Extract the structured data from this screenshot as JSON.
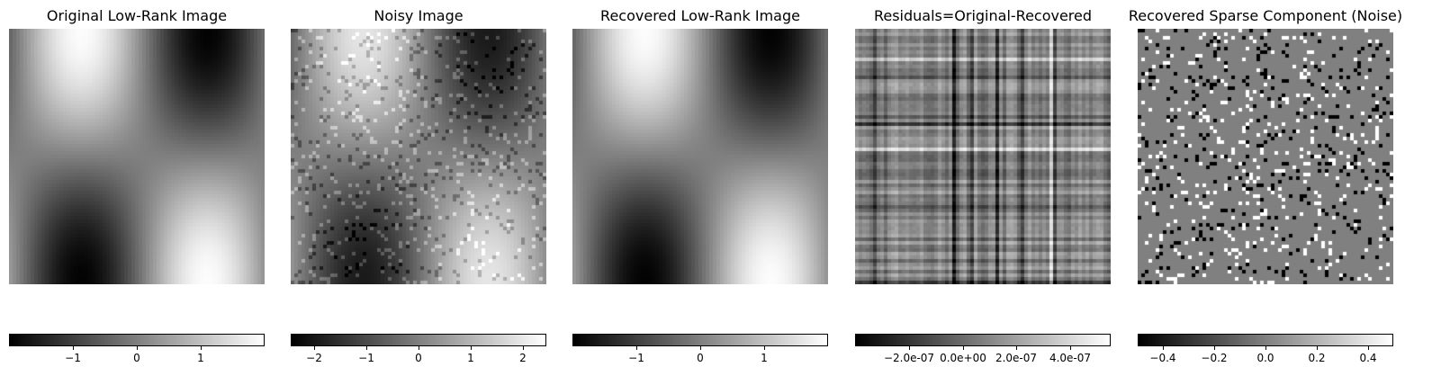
{
  "chart_data": [
    {
      "type": "heatmap",
      "title": "Original Low-Rank Image",
      "pattern": "smooth",
      "colormap": "gray",
      "colorbar": {
        "orientation": "horizontal",
        "range": [
          -2.0,
          2.0
        ],
        "ticks": [
          -1,
          0,
          1
        ],
        "tick_labels": [
          "−1",
          "0",
          "1"
        ]
      }
    },
    {
      "type": "heatmap",
      "title": "Noisy Image",
      "pattern": "smooth+sparse",
      "colormap": "gray",
      "colorbar": {
        "orientation": "horizontal",
        "range": [
          -2.45,
          2.45
        ],
        "ticks": [
          -2,
          -1,
          0,
          1,
          2
        ],
        "tick_labels": [
          "−2",
          "−1",
          "0",
          "1",
          "2"
        ]
      }
    },
    {
      "type": "heatmap",
      "title": "Recovered Low-Rank Image",
      "pattern": "smooth",
      "colormap": "gray",
      "colorbar": {
        "orientation": "horizontal",
        "range": [
          -2.0,
          2.0
        ],
        "ticks": [
          -1,
          0,
          1
        ],
        "tick_labels": [
          "−1",
          "0",
          "1"
        ]
      }
    },
    {
      "type": "heatmap",
      "title": "Residuals=Original-Recovered",
      "pattern": "grid-lines",
      "colormap": "gray",
      "colorbar": {
        "orientation": "horizontal",
        "range": [
          -4e-07,
          5.5e-07
        ],
        "ticks": [
          -2e-07,
          0.0,
          2e-07,
          4e-07
        ],
        "tick_labels": [
          "−2.0e-07",
          "0.0e+00",
          "2.0e-07",
          "4.0e-07"
        ]
      }
    },
    {
      "type": "heatmap",
      "title": "Recovered Sparse Component (Noise)",
      "pattern": "sparse",
      "colormap": "gray",
      "colorbar": {
        "orientation": "horizontal",
        "range": [
          -0.5,
          0.5
        ],
        "ticks": [
          -0.4,
          -0.2,
          0.0,
          0.2,
          0.4
        ],
        "tick_labels": [
          "−0.4",
          "−0.2",
          "0.0",
          "0.2",
          "0.4"
        ]
      }
    }
  ]
}
